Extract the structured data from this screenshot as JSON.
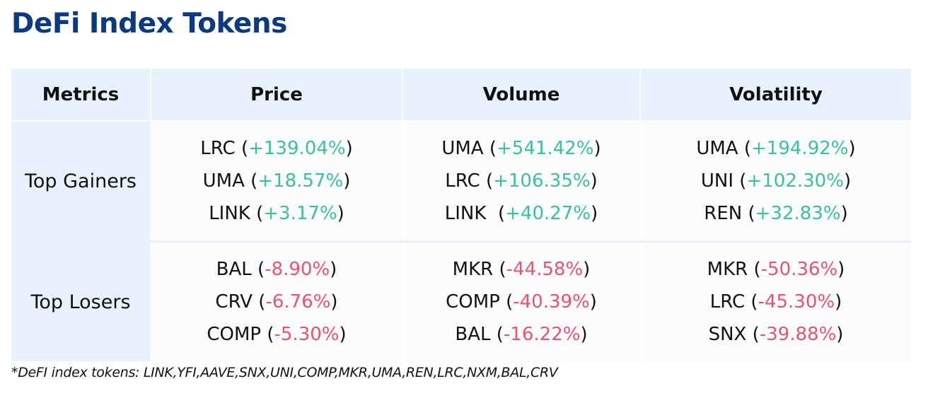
{
  "title": "DeFi Index Tokens",
  "table": {
    "headers": [
      "Metrics",
      "Price",
      "Volume",
      "Volatility"
    ],
    "rows": [
      {
        "metric": "Top Gainers",
        "cells": [
          [
            {
              "token": "LRC",
              "change": "+139.04%"
            },
            {
              "token": "UMA",
              "change": "+18.57%"
            },
            {
              "token": "LINK",
              "change": "+3.17%"
            }
          ],
          [
            {
              "token": "UMA",
              "change": "+541.42%"
            },
            {
              "token": "LRC",
              "change": "+106.35%"
            },
            {
              "token": "LINK ",
              "change": "+40.27%"
            }
          ],
          [
            {
              "token": "UMA",
              "change": "+194.92%"
            },
            {
              "token": "UNI",
              "change": "+102.30%"
            },
            {
              "token": "REN",
              "change": "+32.83%"
            }
          ]
        ]
      },
      {
        "metric": "Top Losers",
        "cells": [
          [
            {
              "token": "BAL",
              "change": "-8.90%"
            },
            {
              "token": "CRV",
              "change": "-6.76%"
            },
            {
              "token": "COMP",
              "change": "-5.30%"
            }
          ],
          [
            {
              "token": "MKR",
              "change": "-44.58%"
            },
            {
              "token": "COMP",
              "change": "-40.39%"
            },
            {
              "token": "BAL",
              "change": "-16.22%"
            }
          ],
          [
            {
              "token": "MKR",
              "change": "-50.36%"
            },
            {
              "token": "LRC",
              "change": "-45.30%"
            },
            {
              "token": "SNX",
              "change": "-39.88%"
            }
          ]
        ]
      }
    ]
  },
  "footnote": "*DeFI index tokens: LINK,YFI,AAVE,SNX,UNI,COMP,MKR,UMA,REN,LRC,NXM,BAL,CRV",
  "colors": {
    "title": "#0b3a80",
    "positive": "#3dbf98",
    "negative": "#e8546c",
    "header_bg": "#e6f1fb"
  }
}
